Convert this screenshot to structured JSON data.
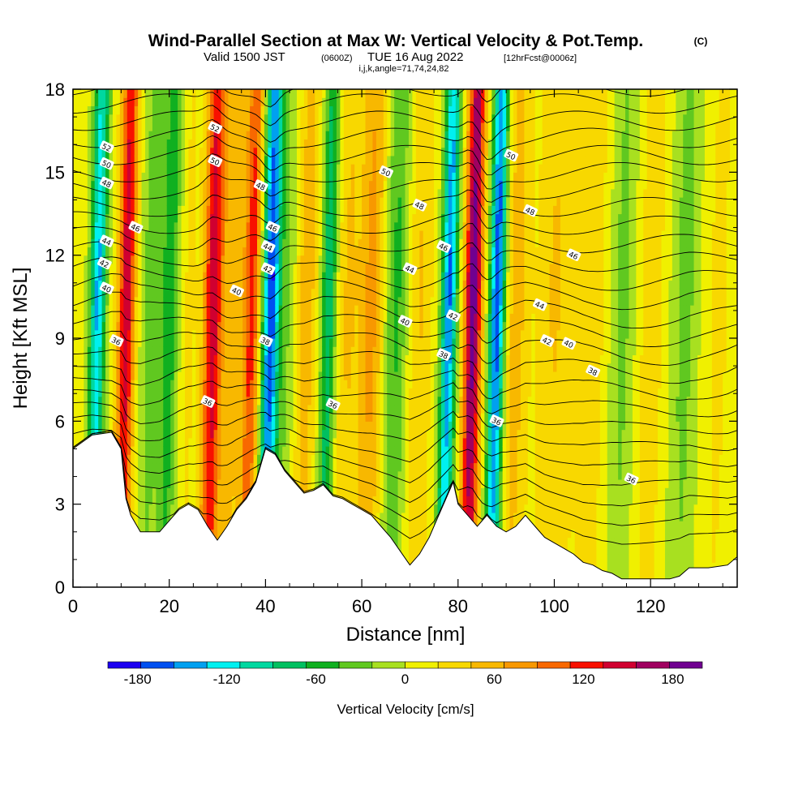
{
  "title": {
    "main": "Wind-Parallel Section at Max W: Vertical Velocity & Pot.Temp.",
    "copyright": "(C)",
    "valid_prefix": "Valid 1500 JST",
    "valid_zulu": "(0600Z)",
    "valid_date": "TUE 16 Aug 2022",
    "forecast": "[12hrFcst@0006z]",
    "indices": "i,j,k,angle=71,74,24,82"
  },
  "chart_data": {
    "type": "heatmap",
    "xlabel": "Distance [nm]",
    "ylabel": "Height [Kft MSL]",
    "xlim": [
      0,
      138
    ],
    "ylim": [
      0,
      18
    ],
    "x_ticks": [
      "0",
      "20",
      "40",
      "60",
      "80",
      "100",
      "120"
    ],
    "y_ticks": [
      "0",
      "3",
      "6",
      "9",
      "12",
      "15",
      "18"
    ],
    "colorbar": {
      "label": "Vertical Velocity [cm/s]",
      "range": [
        -200,
        200
      ],
      "ticks": [
        "-180",
        "-120",
        "-60",
        "0",
        "60",
        "120",
        "180"
      ],
      "colors": [
        "#1c00f0",
        "#0050f0",
        "#00a0f0",
        "#00f0f0",
        "#00d8a0",
        "#00c060",
        "#10b020",
        "#60c820",
        "#a8e020",
        "#f0f000",
        "#f8d800",
        "#f8b800",
        "#f89800",
        "#f86800",
        "#f81000",
        "#d00030",
        "#a00060",
        "#700090"
      ]
    },
    "terrain": [
      [
        0,
        5
      ],
      [
        4,
        5.5
      ],
      [
        8,
        5.6
      ],
      [
        10,
        5
      ],
      [
        11,
        3.2
      ],
      [
        12,
        2.6
      ],
      [
        14,
        2
      ],
      [
        18,
        2
      ],
      [
        20,
        2.4
      ],
      [
        22,
        2.8
      ],
      [
        24,
        3
      ],
      [
        26,
        2.8
      ],
      [
        28,
        2.2
      ],
      [
        30,
        1.7
      ],
      [
        32,
        2.2
      ],
      [
        34,
        2.8
      ],
      [
        36,
        3.2
      ],
      [
        38,
        3.8
      ],
      [
        40,
        5
      ],
      [
        42,
        4.8
      ],
      [
        44,
        4.2
      ],
      [
        46,
        3.8
      ],
      [
        48,
        3.4
      ],
      [
        50,
        3.5
      ],
      [
        52,
        3.7
      ],
      [
        54,
        3.3
      ],
      [
        56,
        3.2
      ],
      [
        58,
        3
      ],
      [
        60,
        2.8
      ],
      [
        62,
        2.6
      ],
      [
        64,
        2.2
      ],
      [
        66,
        1.8
      ],
      [
        68,
        1.3
      ],
      [
        70,
        0.8
      ],
      [
        72,
        1.2
      ],
      [
        74,
        1.8
      ],
      [
        76,
        2.6
      ],
      [
        78,
        3.4
      ],
      [
        79,
        3.8
      ],
      [
        80,
        3
      ],
      [
        82,
        2.6
      ],
      [
        84,
        2.2
      ],
      [
        86,
        2.6
      ],
      [
        88,
        2.2
      ],
      [
        90,
        2
      ],
      [
        92,
        2.2
      ],
      [
        94,
        2.6
      ],
      [
        96,
        2.2
      ],
      [
        98,
        1.8
      ],
      [
        100,
        1.6
      ],
      [
        102,
        1.4
      ],
      [
        104,
        1.2
      ],
      [
        106,
        0.9
      ],
      [
        108,
        0.8
      ],
      [
        110,
        0.6
      ],
      [
        112,
        0.5
      ],
      [
        114,
        0.3
      ],
      [
        116,
        0.3
      ],
      [
        120,
        0.3
      ],
      [
        124,
        0.3
      ],
      [
        126,
        0.4
      ],
      [
        128,
        0.7
      ],
      [
        132,
        0.7
      ],
      [
        136,
        0.8
      ],
      [
        138,
        1.1
      ]
    ],
    "w_bands": [
      {
        "x": 5,
        "w": -150,
        "width": 1.6
      },
      {
        "x": 11,
        "w": 150,
        "width": 1.8
      },
      {
        "x": 16,
        "w": -40,
        "width": 2.5
      },
      {
        "x": 20,
        "w": -70,
        "width": 1.8
      },
      {
        "x": 24,
        "w": 20,
        "width": 1.5
      },
      {
        "x": 29,
        "w": 150,
        "width": 2.0
      },
      {
        "x": 33,
        "w": 50,
        "width": 2.0
      },
      {
        "x": 37,
        "w": 120,
        "width": 1.8
      },
      {
        "x": 41,
        "w": -190,
        "width": 1.8
      },
      {
        "x": 45,
        "w": -40,
        "width": 2.5
      },
      {
        "x": 48,
        "w": 60,
        "width": 2.5
      },
      {
        "x": 53,
        "w": -100,
        "width": 1.6
      },
      {
        "x": 57,
        "w": 40,
        "width": 2.5
      },
      {
        "x": 62,
        "w": 70,
        "width": 2.5
      },
      {
        "x": 67,
        "w": -60,
        "width": 2.5
      },
      {
        "x": 72,
        "w": 40,
        "width": 2.5
      },
      {
        "x": 78,
        "w": -170,
        "width": 1.6
      },
      {
        "x": 83,
        "w": 190,
        "width": 1.8
      },
      {
        "x": 88,
        "w": -190,
        "width": 1.6
      },
      {
        "x": 92,
        "w": 50,
        "width": 2.5
      },
      {
        "x": 100,
        "w": 40,
        "width": 3.5
      },
      {
        "x": 108,
        "w": 30,
        "width": 3.5
      },
      {
        "x": 114,
        "w": -40,
        "width": 3.0
      },
      {
        "x": 120,
        "w": 30,
        "width": 3.0
      },
      {
        "x": 127,
        "w": -40,
        "width": 3.0
      },
      {
        "x": 134,
        "w": 20,
        "width": 3.0
      }
    ],
    "theta_levels": [
      36,
      38,
      40,
      42,
      44,
      46,
      48,
      50,
      52
    ],
    "contour_labels": [
      {
        "text": "52",
        "x": 7,
        "y": 15.9
      },
      {
        "text": "50",
        "x": 7,
        "y": 15.3
      },
      {
        "text": "48",
        "x": 7,
        "y": 14.6
      },
      {
        "text": "44",
        "x": 7,
        "y": 12.5
      },
      {
        "text": "42",
        "x": 6.5,
        "y": 11.7
      },
      {
        "text": "40",
        "x": 7,
        "y": 10.8
      },
      {
        "text": "36",
        "x": 9,
        "y": 8.9
      },
      {
        "text": "46",
        "x": 13,
        "y": 13
      },
      {
        "text": "52",
        "x": 29.5,
        "y": 16.6
      },
      {
        "text": "50",
        "x": 29.5,
        "y": 15.4
      },
      {
        "text": "48",
        "x": 39,
        "y": 14.5
      },
      {
        "text": "46",
        "x": 41.5,
        "y": 13
      },
      {
        "text": "44",
        "x": 40.5,
        "y": 12.3
      },
      {
        "text": "42",
        "x": 40.5,
        "y": 11.5
      },
      {
        "text": "40",
        "x": 34,
        "y": 10.7
      },
      {
        "text": "38",
        "x": 40,
        "y": 8.9
      },
      {
        "text": "36",
        "x": 28,
        "y": 6.7
      },
      {
        "text": "36",
        "x": 54,
        "y": 6.6
      },
      {
        "text": "50",
        "x": 65,
        "y": 15
      },
      {
        "text": "48",
        "x": 72,
        "y": 13.8
      },
      {
        "text": "46",
        "x": 77,
        "y": 12.3
      },
      {
        "text": "44",
        "x": 70,
        "y": 11.5
      },
      {
        "text": "40",
        "x": 69,
        "y": 9.6
      },
      {
        "text": "42",
        "x": 79,
        "y": 9.8
      },
      {
        "text": "38",
        "x": 77,
        "y": 8.4
      },
      {
        "text": "50",
        "x": 91,
        "y": 15.6
      },
      {
        "text": "48",
        "x": 95,
        "y": 13.6
      },
      {
        "text": "46",
        "x": 104,
        "y": 12
      },
      {
        "text": "44",
        "x": 97,
        "y": 10.2
      },
      {
        "text": "42",
        "x": 98.5,
        "y": 8.9
      },
      {
        "text": "40",
        "x": 103,
        "y": 8.8
      },
      {
        "text": "38",
        "x": 108,
        "y": 7.8
      },
      {
        "text": "36",
        "x": 88,
        "y": 6
      },
      {
        "text": "36",
        "x": 116,
        "y": 3.9
      }
    ]
  }
}
